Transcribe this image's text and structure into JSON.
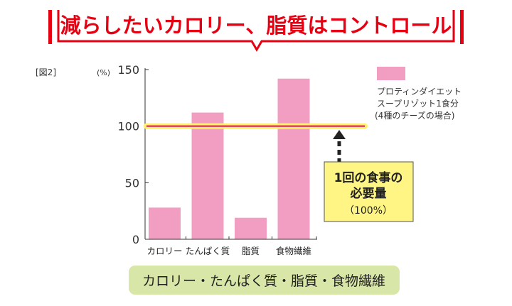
{
  "title": "減らしたいカロリー、脂質はコントロール",
  "figure_label": "[図2]",
  "callout": {
    "line1": "1回の食事の",
    "line2": "必要量",
    "line3": "（100%）"
  },
  "footer_label": "カロリー・たんぱく質・脂質・食物繊維",
  "colors": {
    "bar": "#f19ec2",
    "title": "#e60012",
    "reference_line": "#e4007f",
    "reference_glow": "#fff36b",
    "callout_bg": "#fff584",
    "footer_bg": "#d8e6a8"
  },
  "chart_data": {
    "type": "bar",
    "title": "",
    "ylabel": "(%)",
    "xlabel": "",
    "categories": [
      "カロリー",
      "たんぱく質",
      "脂質",
      "食物繊維"
    ],
    "series": [
      {
        "name": "プロティンダイエット スープリゾット1食分 (4種のチーズの場合)",
        "values": [
          28,
          112,
          19,
          142
        ]
      }
    ],
    "legend": {
      "lines": [
        "プロティンダイエット",
        "スープリゾット1食分",
        "(4種のチーズの場合)"
      ],
      "placement": "top-right"
    },
    "yticks": [
      "0",
      "50",
      "100",
      "150"
    ],
    "ylim": [
      0,
      150
    ],
    "reference_line": 100,
    "grid": false
  }
}
